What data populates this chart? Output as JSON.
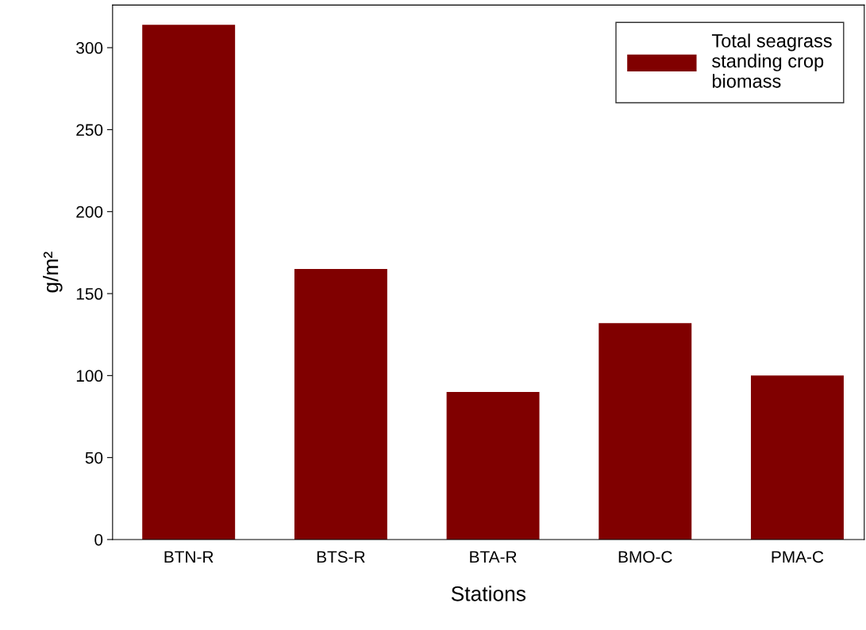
{
  "chart_data": {
    "type": "bar",
    "xlabel": "Stations",
    "ylabel": "g/m²",
    "categories": [
      "BTN-R",
      "BTS-R",
      "BTA-R",
      "BMO-C",
      "PMA-C"
    ],
    "series": [
      {
        "name": "Total seagrass\nstanding crop\nbiomass",
        "color": "#800000",
        "values": [
          314,
          165,
          90,
          132,
          100
        ]
      }
    ],
    "ylim": [
      0,
      326
    ],
    "yticks": [
      0,
      50,
      100,
      150,
      200,
      250,
      300
    ],
    "grid": false,
    "legend": "top right"
  }
}
